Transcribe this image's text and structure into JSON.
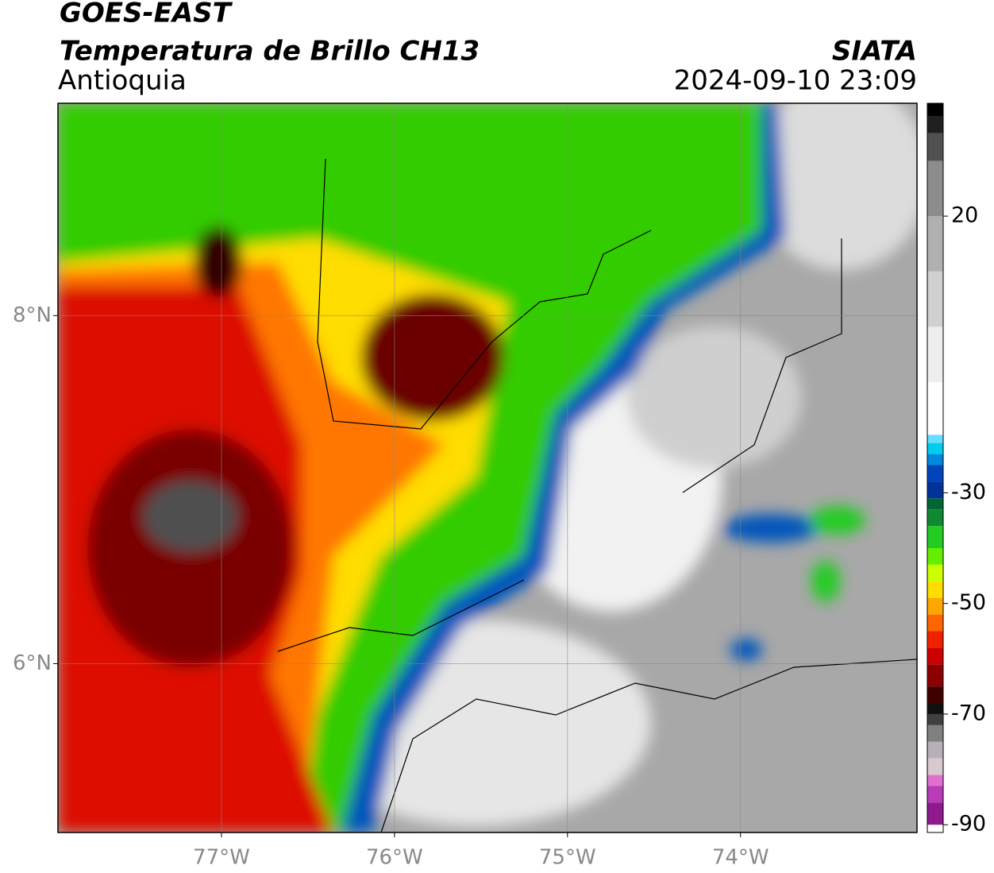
{
  "header": {
    "title": "GOES-EAST",
    "subtitle": "Temperatura de Brillo CH13",
    "region": "Antioquia",
    "source": "SIATA",
    "datetime": "2024-09-10 23:09"
  },
  "map": {
    "xlim": [
      -77.945,
      -72.98
    ],
    "ylim": [
      5.03,
      9.22
    ],
    "xticks": [
      {
        "value": -77,
        "label": "77°W"
      },
      {
        "value": -76,
        "label": "76°W"
      },
      {
        "value": -75,
        "label": "75°W"
      },
      {
        "value": -74,
        "label": "74°W"
      }
    ],
    "yticks": [
      {
        "value": 6,
        "label": "6°N"
      },
      {
        "value": 8,
        "label": "8°N"
      }
    ],
    "grid": true
  },
  "colorbar": {
    "lim": [
      -91.4,
      40.4
    ],
    "ticks": [
      20,
      -30,
      -50,
      -70,
      -90
    ],
    "stops": [
      {
        "value": -91.4,
        "color": "#ffffff"
      },
      {
        "value": -90,
        "color": "#8e1a8e"
      },
      {
        "value": -86,
        "color": "#b83cb8"
      },
      {
        "value": -83,
        "color": "#e070d0"
      },
      {
        "value": -81,
        "color": "#d8c8d0"
      },
      {
        "value": -78,
        "color": "#b8b0b8"
      },
      {
        "value": -75,
        "color": "#808080"
      },
      {
        "value": -72,
        "color": "#404040"
      },
      {
        "value": -70,
        "color": "#101010"
      },
      {
        "value": -68,
        "color": "#400000"
      },
      {
        "value": -65,
        "color": "#8b0000"
      },
      {
        "value": -61,
        "color": "#cc0000"
      },
      {
        "value": -58,
        "color": "#ee2200"
      },
      {
        "value": -55,
        "color": "#ff6600"
      },
      {
        "value": -52,
        "color": "#ffa500"
      },
      {
        "value": -49,
        "color": "#ffdd00"
      },
      {
        "value": -46,
        "color": "#ccff00"
      },
      {
        "value": -43,
        "color": "#66ee00"
      },
      {
        "value": -40,
        "color": "#22cc22"
      },
      {
        "value": -36,
        "color": "#118833"
      },
      {
        "value": -33,
        "color": "#006633"
      },
      {
        "value": -31,
        "color": "#003399"
      },
      {
        "value": -28,
        "color": "#0044bb"
      },
      {
        "value": -25,
        "color": "#0088dd"
      },
      {
        "value": -23,
        "color": "#00ccee"
      },
      {
        "value": -21,
        "color": "#66ddff"
      },
      {
        "value": -19.5,
        "color": "#ffffff"
      },
      {
        "value": -10,
        "color": "#eeeeee"
      },
      {
        "value": 0,
        "color": "#d0d0d0"
      },
      {
        "value": 10,
        "color": "#b0b0b0"
      },
      {
        "value": 20,
        "color": "#8c8c8c"
      },
      {
        "value": 30,
        "color": "#505050"
      },
      {
        "value": 35,
        "color": "#202020"
      },
      {
        "value": 38,
        "color": "#000000"
      }
    ]
  }
}
